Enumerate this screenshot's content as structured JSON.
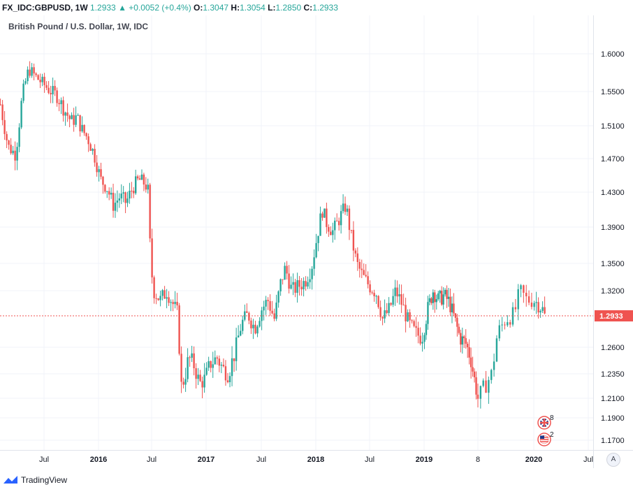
{
  "legend": {
    "symbol": "FX_IDC:GBPUSD, 1W",
    "last": "1.2933",
    "change": "▲ +0.0052 (+0.4%)",
    "o_label": "O:",
    "o_value": "1.3047",
    "h_label": "H:",
    "h_value": "1.3054",
    "l_label": "L:",
    "l_value": "1.2850",
    "c_label": "C:",
    "c_value": "1.2933"
  },
  "subtitle": "British Pound / U.S. Dollar, 1W, IDC",
  "footer": {
    "brand": "TradingView"
  },
  "axis_button": "A",
  "events": [
    {
      "flag": "uk-flag-icon",
      "count": "8"
    },
    {
      "flag": "us-flag-icon",
      "count": "2"
    }
  ],
  "colors": {
    "up": "#26a69a",
    "down": "#ef5350",
    "grid": "#f0f3fa",
    "last_price": "#ef5350"
  },
  "chart_data": {
    "type": "candlestick",
    "series_name": "",
    "x_tick_labels": [
      "Jul",
      "2016",
      "Jul",
      "2017",
      "Jul",
      "2018",
      "Jul",
      "2019",
      "8",
      "2020",
      "Jul"
    ],
    "x_tick_times": [
      2015.5,
      2016.0,
      2016.5,
      2017.0,
      2017.5,
      2018.0,
      2018.5,
      2019.0,
      2019.6,
      2020.0,
      2020.5
    ],
    "y_tick_labels": [
      "1.6000",
      "1.5500",
      "1.5100",
      "1.4700",
      "1.4300",
      "1.3900",
      "1.3500",
      "1.3200",
      "1.2600",
      "1.2350",
      "1.2100",
      "1.1900",
      "1.1700"
    ],
    "y_ticks": [
      1.6,
      1.55,
      1.51,
      1.47,
      1.43,
      1.39,
      1.35,
      1.32,
      1.26,
      1.235,
      1.21,
      1.19,
      1.17
    ],
    "x_range": [
      2015.1,
      2020.5
    ],
    "last_price": 1.2933,
    "last_price_label": "1.2933",
    "grid": true,
    "anchors": [
      [
        2015.1,
        1.535
      ],
      [
        2015.17,
        1.485
      ],
      [
        2015.24,
        1.475
      ],
      [
        2015.3,
        1.545
      ],
      [
        2015.36,
        1.58
      ],
      [
        2015.42,
        1.57
      ],
      [
        2015.48,
        1.562
      ],
      [
        2015.55,
        1.552
      ],
      [
        2015.62,
        1.545
      ],
      [
        2015.68,
        1.53
      ],
      [
        2015.75,
        1.515
      ],
      [
        2015.8,
        1.52
      ],
      [
        2015.85,
        1.505
      ],
      [
        2015.9,
        1.495
      ],
      [
        2015.96,
        1.475
      ],
      [
        2016.02,
        1.445
      ],
      [
        2016.08,
        1.435
      ],
      [
        2016.14,
        1.415
      ],
      [
        2016.2,
        1.425
      ],
      [
        2016.26,
        1.418
      ],
      [
        2016.32,
        1.435
      ],
      [
        2016.38,
        1.445
      ],
      [
        2016.44,
        1.44
      ],
      [
        2016.47,
        1.43
      ],
      [
        2016.49,
        1.35
      ],
      [
        2016.52,
        1.32
      ],
      [
        2016.58,
        1.31
      ],
      [
        2016.64,
        1.32
      ],
      [
        2016.7,
        1.305
      ],
      [
        2016.74,
        1.295
      ],
      [
        2016.77,
        1.222
      ],
      [
        2016.8,
        1.23
      ],
      [
        2016.84,
        1.25
      ],
      [
        2016.89,
        1.243
      ],
      [
        2016.94,
        1.225
      ],
      [
        2016.99,
        1.23
      ],
      [
        2017.04,
        1.245
      ],
      [
        2017.1,
        1.25
      ],
      [
        2017.15,
        1.24
      ],
      [
        2017.2,
        1.235
      ],
      [
        2017.26,
        1.255
      ],
      [
        2017.32,
        1.285
      ],
      [
        2017.38,
        1.295
      ],
      [
        2017.44,
        1.28
      ],
      [
        2017.5,
        1.3
      ],
      [
        2017.56,
        1.31
      ],
      [
        2017.62,
        1.29
      ],
      [
        2017.68,
        1.33
      ],
      [
        2017.72,
        1.345
      ],
      [
        2017.78,
        1.32
      ],
      [
        2017.84,
        1.325
      ],
      [
        2017.9,
        1.33
      ],
      [
        2017.96,
        1.345
      ],
      [
        2018.02,
        1.385
      ],
      [
        2018.06,
        1.41
      ],
      [
        2018.1,
        1.395
      ],
      [
        2018.16,
        1.385
      ],
      [
        2018.22,
        1.4
      ],
      [
        2018.28,
        1.415
      ],
      [
        2018.32,
        1.385
      ],
      [
        2018.38,
        1.35
      ],
      [
        2018.44,
        1.335
      ],
      [
        2018.5,
        1.325
      ],
      [
        2018.56,
        1.318
      ],
      [
        2018.62,
        1.29
      ],
      [
        2018.68,
        1.3
      ],
      [
        2018.74,
        1.32
      ],
      [
        2018.8,
        1.305
      ],
      [
        2018.86,
        1.285
      ],
      [
        2018.92,
        1.275
      ],
      [
        2018.98,
        1.27
      ],
      [
        2019.04,
        1.3
      ],
      [
        2019.1,
        1.32
      ],
      [
        2019.16,
        1.31
      ],
      [
        2019.22,
        1.315
      ],
      [
        2019.28,
        1.308
      ],
      [
        2019.34,
        1.29
      ],
      [
        2019.4,
        1.27
      ],
      [
        2019.46,
        1.265
      ],
      [
        2019.52,
        1.25
      ],
      [
        2019.58,
        1.22
      ],
      [
        2019.6,
        1.21
      ],
      [
        2019.64,
        1.22
      ],
      [
        2019.7,
        1.235
      ],
      [
        2019.74,
        1.275
      ],
      [
        2019.8,
        1.29
      ],
      [
        2019.86,
        1.295
      ],
      [
        2019.9,
        1.32
      ],
      [
        2019.95,
        1.31
      ],
      [
        2020.0,
        1.31
      ],
      [
        2020.05,
        1.305
      ],
      [
        2020.08,
        1.3
      ],
      [
        2020.1,
        1.2933
      ]
    ]
  }
}
